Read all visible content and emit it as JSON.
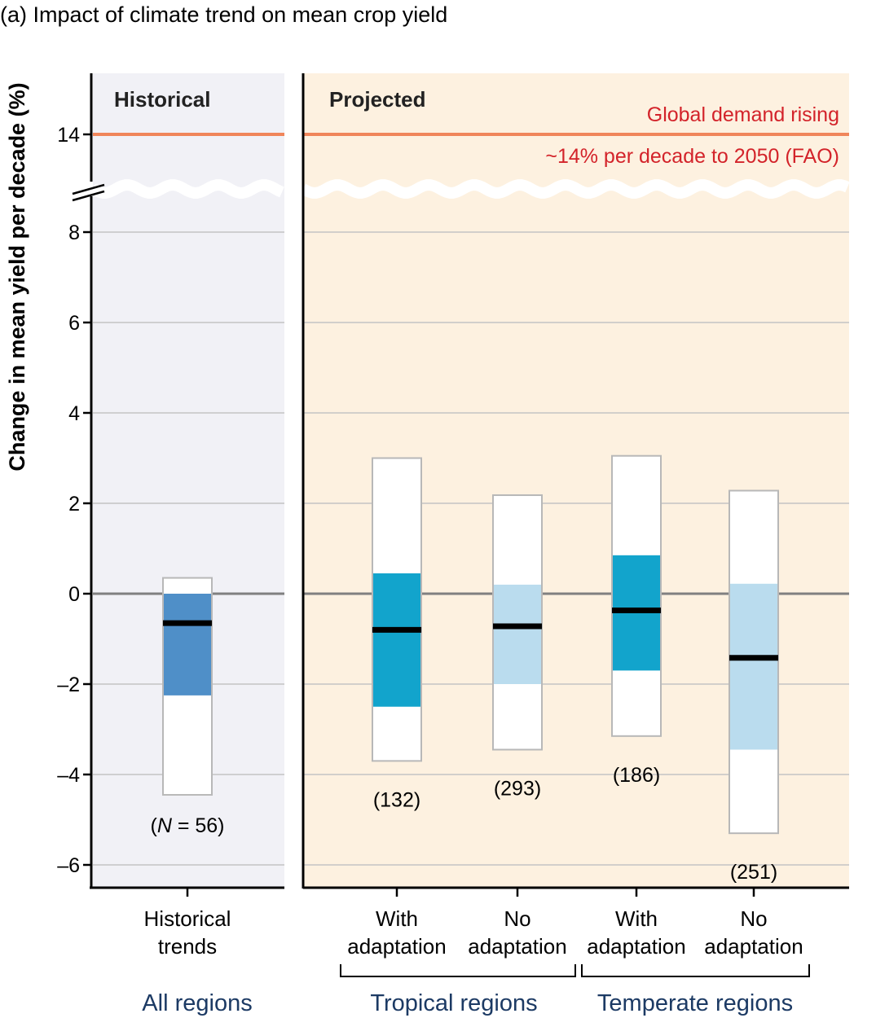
{
  "panel_title": "(a) Impact of climate trend on mean crop yield",
  "colors": {
    "historical_bg": "#f1f1f6",
    "projected_bg": "#fdf1e0",
    "demand_line": "#f0855a",
    "demand_text": "#d3232a",
    "zero_line": "#808080",
    "grid": "#c4c4c4",
    "hist_iqr": "#4f8fc8",
    "with_adapt_iqr": "#12a4cc",
    "no_adapt_iqr": "#badcee",
    "median": "#000000",
    "group_label": "#1c3a64"
  },
  "chart_data": {
    "type": "box",
    "title": "(a) Impact of climate trend on mean crop yield",
    "ylabel": "Change in mean yield per decade (%)",
    "ylim": [
      -6,
      14
    ],
    "axis_break": [
      8.8,
      14
    ],
    "yticks": [
      14,
      8,
      6,
      4,
      2,
      0,
      -2,
      -4,
      -6
    ],
    "ytick_labels": [
      "14",
      "8",
      "6",
      "4",
      "2",
      "0",
      "–2",
      "–4",
      "–6"
    ],
    "grid": true,
    "panels": [
      {
        "label": "Historical"
      },
      {
        "label": "Projected"
      }
    ],
    "reference_line": {
      "value": 14,
      "text_line1": "Global demand rising",
      "text_line2": "~14% per decade to 2050 (FAO)"
    },
    "boxes": [
      {
        "category_line1": "Historical",
        "category_line2": "trends",
        "group": "All regions",
        "min": -4.45,
        "q1": -2.25,
        "median": -0.65,
        "q3": 0.0,
        "max": 0.35,
        "n_label": "(N = 56)",
        "style": "historical"
      },
      {
        "category_line1": "With",
        "category_line2": "adaptation",
        "group": "Tropical regions",
        "min": -3.7,
        "q1": -2.5,
        "median": -0.8,
        "q3": 0.45,
        "max": 3.0,
        "n_label": "(132)",
        "style": "with_adaptation"
      },
      {
        "category_line1": "No",
        "category_line2": "adaptation",
        "group": "Tropical regions",
        "min": -3.45,
        "q1": -2.0,
        "median": -0.72,
        "q3": 0.2,
        "max": 2.18,
        "n_label": "(293)",
        "style": "no_adaptation"
      },
      {
        "category_line1": "With",
        "category_line2": "adaptation",
        "group": "Temperate regions",
        "min": -3.15,
        "q1": -1.7,
        "median": -0.37,
        "q3": 0.85,
        "max": 3.05,
        "n_label": "(186)",
        "style": "with_adaptation"
      },
      {
        "category_line1": "No",
        "category_line2": "adaptation",
        "group": "Temperate regions",
        "min": -5.3,
        "q1": -3.45,
        "median": -1.42,
        "q3": 0.22,
        "max": 2.28,
        "n_label": "(251)",
        "style": "no_adaptation"
      }
    ],
    "groups": [
      "All regions",
      "Tropical regions",
      "Temperate regions"
    ]
  }
}
